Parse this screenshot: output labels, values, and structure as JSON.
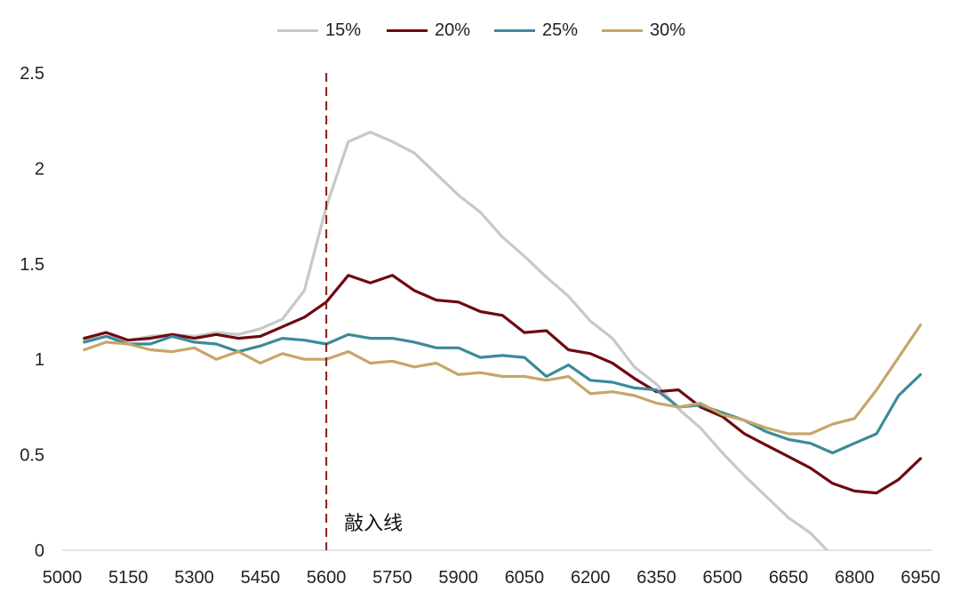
{
  "chart_data": {
    "type": "line",
    "title": "",
    "xlabel": "",
    "ylabel": "",
    "xlim": [
      5000,
      6975
    ],
    "ylim": [
      0,
      2.5
    ],
    "x_ticks": [
      5000,
      5150,
      5300,
      5450,
      5600,
      5750,
      5900,
      6050,
      6200,
      6350,
      6500,
      6650,
      6800,
      6950
    ],
    "y_ticks": [
      0,
      0.5,
      1,
      1.5,
      2,
      2.5
    ],
    "y_tick_labels": [
      "0",
      "0.5",
      "1",
      "1.5",
      "2",
      "2.5"
    ],
    "grid": false,
    "legend_position": "top-center",
    "x": [
      5050,
      5100,
      5150,
      5200,
      5250,
      5300,
      5350,
      5400,
      5450,
      5500,
      5550,
      5600,
      5650,
      5700,
      5750,
      5800,
      5850,
      5900,
      5950,
      6000,
      6050,
      6100,
      6150,
      6200,
      6250,
      6300,
      6350,
      6400,
      6450,
      6500,
      6550,
      6600,
      6650,
      6700,
      6750,
      6800,
      6850,
      6900,
      6950
    ],
    "series": [
      {
        "name": "15%",
        "color": "#c8c8c8",
        "values": [
          1.1,
          1.12,
          1.1,
          1.12,
          1.13,
          1.12,
          1.14,
          1.13,
          1.16,
          1.21,
          1.36,
          1.8,
          2.14,
          2.19,
          2.14,
          2.08,
          1.97,
          1.86,
          1.77,
          1.64,
          1.54,
          1.43,
          1.33,
          1.2,
          1.11,
          0.96,
          0.87,
          0.74,
          0.64,
          0.51,
          0.39,
          0.28,
          0.17,
          0.09,
          -0.03,
          null,
          null,
          null,
          null
        ]
      },
      {
        "name": "20%",
        "color": "#6e0a0f",
        "values": [
          1.11,
          1.14,
          1.1,
          1.11,
          1.13,
          1.11,
          1.13,
          1.11,
          1.12,
          1.17,
          1.22,
          1.3,
          1.44,
          1.4,
          1.44,
          1.36,
          1.31,
          1.3,
          1.25,
          1.23,
          1.14,
          1.15,
          1.05,
          1.03,
          0.98,
          0.9,
          0.83,
          0.84,
          0.75,
          0.7,
          0.61,
          0.55,
          0.49,
          0.43,
          0.35,
          0.31,
          0.3,
          0.37,
          0.48
        ]
      },
      {
        "name": "25%",
        "color": "#3c8a9b",
        "values": [
          1.09,
          1.12,
          1.08,
          1.08,
          1.12,
          1.09,
          1.08,
          1.04,
          1.07,
          1.11,
          1.1,
          1.08,
          1.13,
          1.11,
          1.11,
          1.09,
          1.06,
          1.06,
          1.01,
          1.02,
          1.01,
          0.91,
          0.97,
          0.89,
          0.88,
          0.85,
          0.84,
          0.75,
          0.76,
          0.72,
          0.68,
          0.62,
          0.58,
          0.56,
          0.51,
          0.56,
          0.61,
          0.81,
          0.92
        ]
      },
      {
        "name": "30%",
        "color": "#c6a669",
        "values": [
          1.05,
          1.09,
          1.08,
          1.05,
          1.04,
          1.06,
          1.0,
          1.04,
          0.98,
          1.03,
          1.0,
          1.0,
          1.04,
          0.98,
          0.99,
          0.96,
          0.98,
          0.92,
          0.93,
          0.91,
          0.91,
          0.89,
          0.91,
          0.82,
          0.83,
          0.81,
          0.77,
          0.75,
          0.77,
          0.71,
          0.68,
          0.64,
          0.61,
          0.61,
          0.66,
          0.69,
          0.84,
          1.01,
          1.18
        ]
      }
    ],
    "annotations": [
      {
        "type": "vertical-line",
        "x": 5600,
        "color": "#8b1a1a",
        "style": "dashed",
        "label": "敲入线"
      }
    ]
  }
}
